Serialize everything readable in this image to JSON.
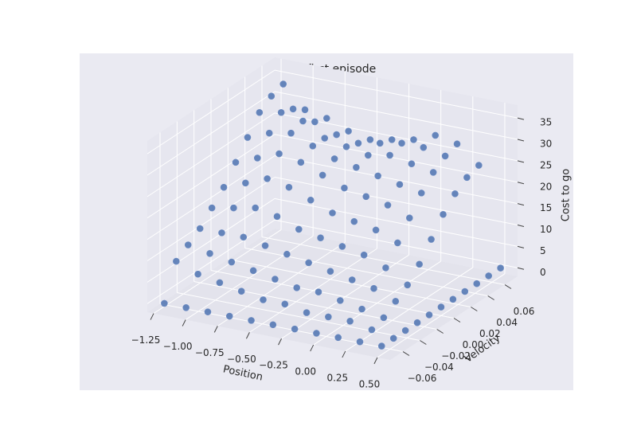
{
  "chart_data": {
    "type": "scatter3d",
    "title": "After first episode",
    "x_label": "Position",
    "y_label": "Velocity",
    "z_label": "Cost to go",
    "xlim": [
      -1.3,
      0.6
    ],
    "ylim": [
      -0.075,
      0.075
    ],
    "zlim": [
      -2,
      38
    ],
    "xticks": [
      {
        "value": -1.25,
        "label": "−1.25"
      },
      {
        "value": -1.0,
        "label": "−1.00"
      },
      {
        "value": -0.75,
        "label": "−0.75"
      },
      {
        "value": -0.5,
        "label": "−0.50"
      },
      {
        "value": -0.25,
        "label": "−0.25"
      },
      {
        "value": 0.0,
        "label": "0.00"
      },
      {
        "value": 0.25,
        "label": "0.25"
      },
      {
        "value": 0.5,
        "label": "0.50"
      }
    ],
    "yticks": [
      {
        "value": -0.06,
        "label": "−0.06"
      },
      {
        "value": -0.04,
        "label": "−0.04"
      },
      {
        "value": -0.02,
        "label": "−0.02"
      },
      {
        "value": 0.0,
        "label": "0.00"
      },
      {
        "value": 0.02,
        "label": "0.02"
      },
      {
        "value": 0.04,
        "label": "0.04"
      },
      {
        "value": 0.06,
        "label": "0.06"
      }
    ],
    "zticks": [
      0,
      5,
      10,
      15,
      20,
      25,
      30,
      35
    ],
    "grid": true,
    "series": [
      {
        "color": "#4c72b0",
        "x": [
          -1.2,
          -1.2,
          -1.2,
          -1.2,
          -1.2,
          -1.2,
          -1.2,
          -1.2,
          -1.2,
          -1.2,
          -1.2,
          -1.03,
          -1.03,
          -1.03,
          -1.03,
          -1.03,
          -1.03,
          -1.03,
          -1.03,
          -1.03,
          -1.03,
          -1.03,
          -0.86,
          -0.86,
          -0.86,
          -0.86,
          -0.86,
          -0.86,
          -0.86,
          -0.86,
          -0.86,
          -0.86,
          -0.86,
          -0.69,
          -0.69,
          -0.69,
          -0.69,
          -0.69,
          -0.69,
          -0.69,
          -0.69,
          -0.69,
          -0.69,
          -0.69,
          -0.52,
          -0.52,
          -0.52,
          -0.52,
          -0.52,
          -0.52,
          -0.52,
          -0.52,
          -0.52,
          -0.52,
          -0.52,
          -0.35,
          -0.35,
          -0.35,
          -0.35,
          -0.35,
          -0.35,
          -0.35,
          -0.35,
          -0.35,
          -0.35,
          -0.35,
          -0.18,
          -0.18,
          -0.18,
          -0.18,
          -0.18,
          -0.18,
          -0.18,
          -0.18,
          -0.18,
          -0.18,
          -0.18,
          -0.01,
          -0.01,
          -0.01,
          -0.01,
          -0.01,
          -0.01,
          -0.01,
          -0.01,
          -0.01,
          -0.01,
          -0.01,
          0.16,
          0.16,
          0.16,
          0.16,
          0.16,
          0.16,
          0.16,
          0.16,
          0.16,
          0.16,
          0.16,
          0.33,
          0.33,
          0.33,
          0.33,
          0.33,
          0.33,
          0.33,
          0.33,
          0.33,
          0.33,
          0.33,
          0.5,
          0.5,
          0.5,
          0.5,
          0.5,
          0.5,
          0.5,
          0.5,
          0.5,
          0.5,
          0.5
        ],
        "y": [
          -0.07,
          -0.056,
          -0.042,
          -0.028,
          -0.014,
          0,
          0.014,
          0.028,
          0.042,
          0.056,
          0.07,
          -0.07,
          -0.056,
          -0.042,
          -0.028,
          -0.014,
          0,
          0.014,
          0.028,
          0.042,
          0.056,
          0.07,
          -0.07,
          -0.056,
          -0.042,
          -0.028,
          -0.014,
          0,
          0.014,
          0.028,
          0.042,
          0.056,
          0.07,
          -0.07,
          -0.056,
          -0.042,
          -0.028,
          -0.014,
          0,
          0.014,
          0.028,
          0.042,
          0.056,
          0.07,
          -0.07,
          -0.056,
          -0.042,
          -0.028,
          -0.014,
          0,
          0.014,
          0.028,
          0.042,
          0.056,
          0.07,
          -0.07,
          -0.056,
          -0.042,
          -0.028,
          -0.014,
          0,
          0.014,
          0.028,
          0.042,
          0.056,
          0.07,
          -0.07,
          -0.056,
          -0.042,
          -0.028,
          -0.014,
          0,
          0.014,
          0.028,
          0.042,
          0.056,
          0.07,
          -0.07,
          -0.056,
          -0.042,
          -0.028,
          -0.014,
          0,
          0.014,
          0.028,
          0.042,
          0.056,
          0.07,
          -0.07,
          -0.056,
          -0.042,
          -0.028,
          -0.014,
          0,
          0.014,
          0.028,
          0.042,
          0.056,
          0.07,
          -0.07,
          -0.056,
          -0.042,
          -0.028,
          -0.014,
          0,
          0.014,
          0.028,
          0.042,
          0.056,
          0.07,
          -0.07,
          -0.056,
          -0.042,
          -0.028,
          -0.014,
          0,
          0.014,
          0.028,
          0.042,
          0.056,
          0.07
        ],
        "z": [
          0,
          8,
          10,
          12,
          15,
          18,
          22,
          26,
          30,
          32,
          33,
          0,
          6,
          9,
          12,
          16,
          20,
          24,
          28,
          31,
          30,
          28,
          0,
          5,
          8,
          12,
          17,
          22,
          26,
          29,
          30,
          28,
          27,
          0,
          4,
          7,
          11,
          16,
          21,
          25,
          27,
          27,
          26,
          25,
          0,
          3,
          6,
          10,
          14,
          19,
          23,
          25,
          26,
          25,
          24,
          0,
          3,
          5,
          9,
          13,
          17,
          21,
          24,
          25,
          26,
          25,
          0,
          2,
          5,
          8,
          12,
          16,
          20,
          23,
          26,
          27,
          26,
          0,
          2,
          4,
          7,
          11,
          15,
          19,
          22,
          25,
          27,
          28,
          0,
          2,
          3,
          6,
          9,
          13,
          17,
          21,
          24,
          26,
          27,
          0,
          1,
          2,
          4,
          6,
          9,
          13,
          17,
          20,
          22,
          23,
          0,
          0,
          0,
          0,
          0,
          0,
          0,
          0,
          0,
          0,
          0
        ]
      }
    ]
  }
}
